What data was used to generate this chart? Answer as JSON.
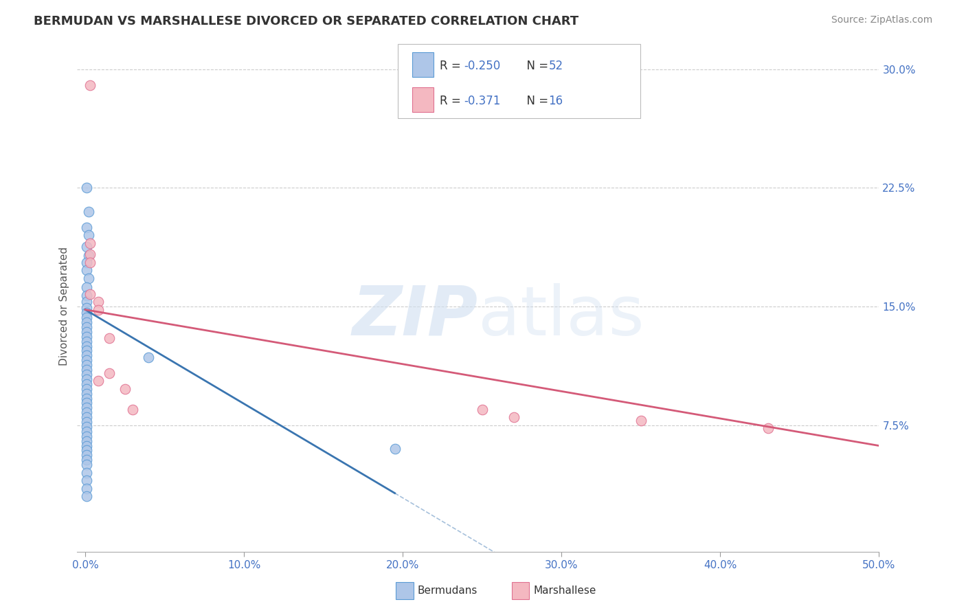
{
  "title": "BERMUDAN VS MARSHALLESE DIVORCED OR SEPARATED CORRELATION CHART",
  "source": "Source: ZipAtlas.com",
  "xlabel_label": "Bermudans",
  "xlabel_label2": "Marshallese",
  "ylabel": "Divorced or Separated",
  "xlim": [
    0.0,
    0.5
  ],
  "ylim": [
    0.0,
    0.3
  ],
  "xticks": [
    0.0,
    0.1,
    0.2,
    0.3,
    0.4,
    0.5
  ],
  "xtick_labels": [
    "0.0%",
    "10.0%",
    "20.0%",
    "30.0%",
    "40.0%",
    "50.0%"
  ],
  "yticks_right": [
    0.075,
    0.15,
    0.225,
    0.3
  ],
  "ytick_labels_right": [
    "7.5%",
    "15.0%",
    "22.5%",
    "30.0%"
  ],
  "legend_r1": "-0.250",
  "legend_n1": "52",
  "legend_r2": "-0.371",
  "legend_n2": "16",
  "blue_color": "#aec6e8",
  "pink_color": "#f4b8c1",
  "blue_edge_color": "#5b9bd5",
  "pink_edge_color": "#e07090",
  "blue_line_color": "#3a75b0",
  "pink_line_color": "#d45a78",
  "blue_dots": [
    [
      0.001,
      0.225
    ],
    [
      0.002,
      0.21
    ],
    [
      0.001,
      0.2
    ],
    [
      0.002,
      0.195
    ],
    [
      0.001,
      0.188
    ],
    [
      0.002,
      0.182
    ],
    [
      0.001,
      0.178
    ],
    [
      0.001,
      0.173
    ],
    [
      0.002,
      0.168
    ],
    [
      0.001,
      0.162
    ],
    [
      0.001,
      0.157
    ],
    [
      0.001,
      0.153
    ],
    [
      0.001,
      0.149
    ],
    [
      0.001,
      0.146
    ],
    [
      0.001,
      0.143
    ],
    [
      0.001,
      0.14
    ],
    [
      0.001,
      0.137
    ],
    [
      0.001,
      0.134
    ],
    [
      0.001,
      0.131
    ],
    [
      0.001,
      0.128
    ],
    [
      0.001,
      0.125
    ],
    [
      0.001,
      0.122
    ],
    [
      0.001,
      0.119
    ],
    [
      0.001,
      0.116
    ],
    [
      0.001,
      0.113
    ],
    [
      0.001,
      0.11
    ],
    [
      0.001,
      0.107
    ],
    [
      0.001,
      0.104
    ],
    [
      0.001,
      0.101
    ],
    [
      0.001,
      0.098
    ],
    [
      0.001,
      0.095
    ],
    [
      0.001,
      0.092
    ],
    [
      0.001,
      0.089
    ],
    [
      0.001,
      0.086
    ],
    [
      0.001,
      0.083
    ],
    [
      0.001,
      0.08
    ],
    [
      0.001,
      0.077
    ],
    [
      0.001,
      0.074
    ],
    [
      0.001,
      0.071
    ],
    [
      0.001,
      0.068
    ],
    [
      0.001,
      0.065
    ],
    [
      0.001,
      0.062
    ],
    [
      0.001,
      0.059
    ],
    [
      0.001,
      0.056
    ],
    [
      0.001,
      0.053
    ],
    [
      0.001,
      0.05
    ],
    [
      0.001,
      0.045
    ],
    [
      0.001,
      0.04
    ],
    [
      0.001,
      0.035
    ],
    [
      0.001,
      0.03
    ],
    [
      0.04,
      0.118
    ],
    [
      0.195,
      0.06
    ]
  ],
  "pink_dots": [
    [
      0.003,
      0.29
    ],
    [
      0.003,
      0.19
    ],
    [
      0.003,
      0.183
    ],
    [
      0.003,
      0.178
    ],
    [
      0.003,
      0.158
    ],
    [
      0.008,
      0.153
    ],
    [
      0.008,
      0.148
    ],
    [
      0.015,
      0.13
    ],
    [
      0.015,
      0.108
    ],
    [
      0.008,
      0.103
    ],
    [
      0.025,
      0.098
    ],
    [
      0.03,
      0.085
    ],
    [
      0.25,
      0.085
    ],
    [
      0.27,
      0.08
    ],
    [
      0.35,
      0.078
    ],
    [
      0.43,
      0.073
    ]
  ],
  "watermark": "ZIPatlas",
  "background_color": "#ffffff",
  "grid_color": "#cccccc",
  "blue_line_x_solid_end": 0.195,
  "blue_line_y_start": 0.148,
  "blue_line_y_end": 0.032,
  "pink_line_x_start": 0.0,
  "pink_line_y_start": 0.148,
  "pink_line_y_end": 0.062
}
